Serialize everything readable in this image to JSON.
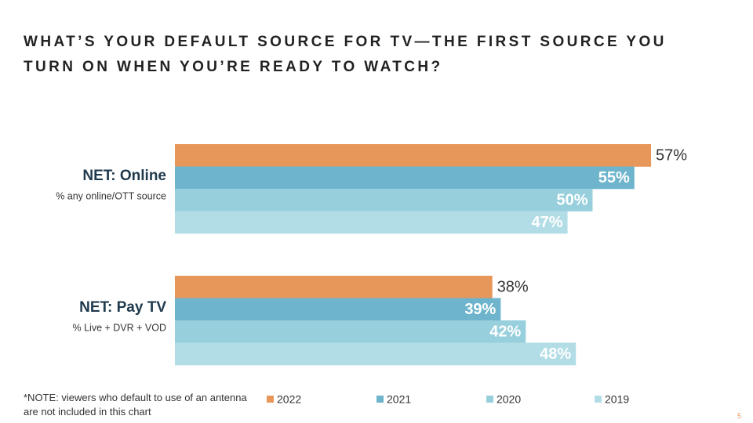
{
  "chart_data": {
    "type": "bar",
    "orientation": "horizontal",
    "title": "WHAT’S YOUR DEFAULT SOURCE FOR TV—THE FIRST SOURCE YOU TURN ON WHEN YOU’RE READY TO WATCH?",
    "categories": [
      "NET: Online",
      "NET: Pay TV"
    ],
    "category_notes": [
      "% any online/OTT source",
      "% Live + DVR + VOD"
    ],
    "series": [
      {
        "name": "2022",
        "color": "#e8975b",
        "values": [
          57,
          38
        ],
        "value_labels": [
          "57%",
          "38%"
        ]
      },
      {
        "name": "2021",
        "color": "#6db4cc",
        "values": [
          55,
          39
        ],
        "value_labels": [
          "55%",
          "39%"
        ]
      },
      {
        "name": "2020",
        "color": "#97cfdd",
        "values": [
          50,
          42
        ],
        "value_labels": [
          "50%",
          "42%"
        ]
      },
      {
        "name": "2019",
        "color": "#b2dde6",
        "values": [
          47,
          48
        ],
        "value_labels": [
          "47%",
          "48%"
        ]
      }
    ],
    "xlim": [
      0,
      60
    ],
    "note": "*NOTE:  viewers who default to use of an antenna are not included in this chart",
    "page_number": "5"
  }
}
